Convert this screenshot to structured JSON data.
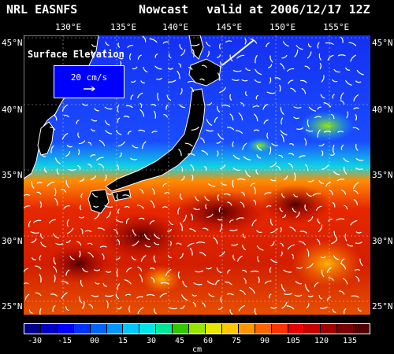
{
  "title": {
    "org": "NRL EASNFS",
    "product": "Nowcast",
    "valid": "valid at 2006/12/17 12Z"
  },
  "lon_labels": [
    "130°E",
    "135°E",
    "140°E",
    "145°E",
    "150°E",
    "155°E"
  ],
  "lat_labels": [
    "45°N",
    "40°N",
    "35°N",
    "30°N",
    "25°N"
  ],
  "legend": {
    "title": "Surface Elevation",
    "vector_scale": "20 cm/s"
  },
  "colorbar": {
    "labels": [
      "-30",
      "-15",
      "00",
      "15",
      "30",
      "45",
      "60",
      "75",
      "90",
      "105",
      "120",
      "135"
    ],
    "unit": "cm",
    "colors": [
      "#00008c",
      "#0000c8",
      "#0000ff",
      "#0032ff",
      "#0064ff",
      "#0096ff",
      "#00c8ff",
      "#00e6e6",
      "#00e696",
      "#32c800",
      "#96e600",
      "#e6e600",
      "#ffc800",
      "#ff9600",
      "#ff6400",
      "#ff3200",
      "#e60000",
      "#c80000",
      "#a00000",
      "#780000",
      "#500000"
    ]
  },
  "map": {
    "ocean_color": "#1a3cf0",
    "land_color": "#000000",
    "coast_color": "#ffffff",
    "arrow_color": "#ffffff"
  }
}
